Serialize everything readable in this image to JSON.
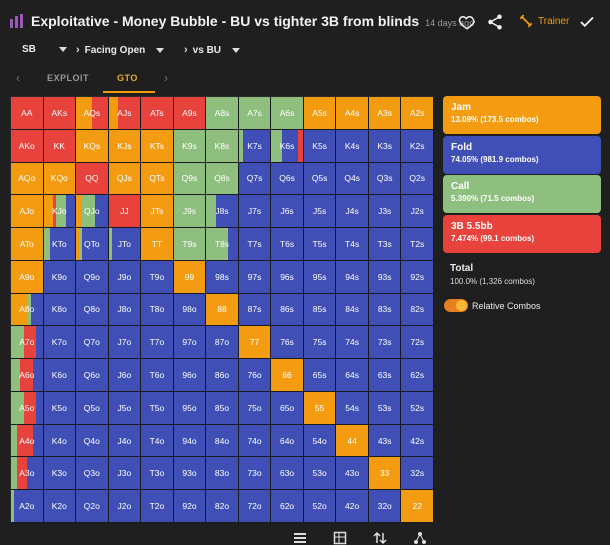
{
  "header": {
    "title": "Exploitative - Money Bubble - BU vs tighter 3B from blinds",
    "timestamp": "14 days ago",
    "trainer_label": "Trainer"
  },
  "filters": {
    "position": "SB",
    "action": "Facing Open",
    "opponent": "vs BU"
  },
  "tabs": {
    "exploit": "EXPLOIT",
    "gto": "GTO",
    "active": "GTO"
  },
  "colors": {
    "jam": "#f39c12",
    "fold": "#3f4fb5",
    "call": "#8fbf7f",
    "threebet": "#e8423c"
  },
  "matrix": {
    "rows": [
      [
        "AA",
        "AKs",
        "AQs",
        "AJs",
        "ATs",
        "A9s",
        "A8s",
        "A7s",
        "A6s",
        "A5s",
        "A4s",
        "A3s",
        "A2s"
      ],
      [
        "AKo",
        "KK",
        "KQs",
        "KJs",
        "KTs",
        "K9s",
        "K8s",
        "K7s",
        "K6s",
        "K5s",
        "K4s",
        "K3s",
        "K2s"
      ],
      [
        "AQo",
        "KQo",
        "QQ",
        "QJs",
        "QTs",
        "Q9s",
        "Q8s",
        "Q7s",
        "Q6s",
        "Q5s",
        "Q4s",
        "Q3s",
        "Q2s"
      ],
      [
        "AJo",
        "KJo",
        "QJo",
        "JJ",
        "JTs",
        "J9s",
        "J8s",
        "J7s",
        "J6s",
        "J5s",
        "J4s",
        "J3s",
        "J2s"
      ],
      [
        "ATo",
        "KTo",
        "QTo",
        "JTo",
        "TT",
        "T9s",
        "T8s",
        "T7s",
        "T6s",
        "T5s",
        "T4s",
        "T3s",
        "T2s"
      ],
      [
        "A9o",
        "K9o",
        "Q9o",
        "J9o",
        "T9o",
        "99",
        "98s",
        "97s",
        "96s",
        "95s",
        "94s",
        "93s",
        "92s"
      ],
      [
        "A8o",
        "K8o",
        "Q8o",
        "J8o",
        "T8o",
        "98o",
        "88",
        "87s",
        "86s",
        "85s",
        "84s",
        "83s",
        "82s"
      ],
      [
        "A7o",
        "K7o",
        "Q7o",
        "J7o",
        "T7o",
        "97o",
        "87o",
        "77",
        "76s",
        "75s",
        "74s",
        "73s",
        "72s"
      ],
      [
        "A6o",
        "K6o",
        "Q6o",
        "J6o",
        "T6o",
        "96o",
        "86o",
        "76o",
        "66",
        "65s",
        "64s",
        "63s",
        "62s"
      ],
      [
        "A5o",
        "K5o",
        "Q5o",
        "J5o",
        "T5o",
        "95o",
        "85o",
        "75o",
        "65o",
        "55",
        "54s",
        "53s",
        "52s"
      ],
      [
        "A4o",
        "K4o",
        "Q4o",
        "J4o",
        "T4o",
        "94o",
        "84o",
        "74o",
        "64o",
        "54o",
        "44",
        "43s",
        "42s"
      ],
      [
        "A3o",
        "K3o",
        "Q3o",
        "J3o",
        "T3o",
        "93o",
        "83o",
        "73o",
        "63o",
        "53o",
        "43o",
        "33",
        "32s"
      ],
      [
        "A2o",
        "K2o",
        "Q2o",
        "J2o",
        "T2o",
        "92o",
        "82o",
        "72o",
        "62o",
        "52o",
        "42o",
        "32o",
        "22"
      ]
    ],
    "mix": {
      "AA": [
        [
          "t",
          1
        ]
      ],
      "AKs": [
        [
          "t",
          1
        ]
      ],
      "AQs": [
        [
          "j",
          0.5
        ],
        [
          "t",
          0.5
        ]
      ],
      "AJs": [
        [
          "j",
          0.3
        ],
        [
          "t",
          0.7
        ]
      ],
      "ATs": [
        [
          "t",
          1
        ]
      ],
      "A9s": [
        [
          "t",
          1
        ]
      ],
      "A8s": [
        [
          "c",
          1
        ]
      ],
      "A7s": [
        [
          "c",
          1
        ]
      ],
      "A6s": [
        [
          "c",
          1
        ]
      ],
      "A5s": [
        [
          "j",
          1
        ]
      ],
      "A4s": [
        [
          "j",
          1
        ]
      ],
      "A3s": [
        [
          "j",
          1
        ]
      ],
      "A2s": [
        [
          "j",
          1
        ]
      ],
      "AKo": [
        [
          "t",
          1
        ]
      ],
      "KK": [
        [
          "t",
          1
        ]
      ],
      "KQs": [
        [
          "j",
          1
        ]
      ],
      "KJs": [
        [
          "j",
          1
        ]
      ],
      "KTs": [
        [
          "j",
          1
        ]
      ],
      "K9s": [
        [
          "c",
          1
        ]
      ],
      "K8s": [
        [
          "c",
          1
        ]
      ],
      "K7s": [
        [
          "c",
          0.15
        ],
        [
          "f",
          0.85
        ]
      ],
      "K6s": [
        [
          "c",
          0.35
        ],
        [
          "f",
          0.5
        ],
        [
          "t",
          0.15
        ]
      ],
      "AQo": [
        [
          "j",
          1
        ]
      ],
      "KQo": [
        [
          "j",
          1
        ]
      ],
      "QQ": [
        [
          "t",
          1
        ]
      ],
      "QJs": [
        [
          "j",
          1
        ]
      ],
      "QTs": [
        [
          "j",
          1
        ]
      ],
      "Q9s": [
        [
          "c",
          1
        ]
      ],
      "Q8s": [
        [
          "c",
          1
        ]
      ],
      "AJo": [
        [
          "j",
          1
        ]
      ],
      "KJo": [
        [
          "j",
          0.3
        ],
        [
          "t",
          0.1
        ],
        [
          "c",
          0.3
        ],
        [
          "f",
          0.3
        ]
      ],
      "QJo": [
        [
          "j",
          0.2
        ],
        [
          "c",
          0.4
        ],
        [
          "f",
          0.4
        ]
      ],
      "JJ": [
        [
          "t",
          1
        ]
      ],
      "JTs": [
        [
          "j",
          1
        ]
      ],
      "J9s": [
        [
          "c",
          1
        ]
      ],
      "J8s": [
        [
          "c",
          0.3
        ],
        [
          "f",
          0.7
        ]
      ],
      "ATo": [
        [
          "j",
          1
        ]
      ],
      "KTo": [
        [
          "c",
          0.2
        ],
        [
          "f",
          0.8
        ]
      ],
      "QTo": [
        [
          "j",
          0.1
        ],
        [
          "c",
          0.1
        ],
        [
          "f",
          0.8
        ]
      ],
      "JTo": [
        [
          "c",
          0.1
        ],
        [
          "f",
          0.9
        ]
      ],
      "TT": [
        [
          "j",
          1
        ]
      ],
      "T9s": [
        [
          "c",
          1
        ]
      ],
      "T8s": [
        [
          "c",
          0.7
        ],
        [
          "f",
          0.3
        ]
      ],
      "A9o": [
        [
          "j",
          1
        ]
      ],
      "99": [
        [
          "j",
          1
        ]
      ],
      "88": [
        [
          "j",
          1
        ]
      ],
      "77": [
        [
          "j",
          1
        ]
      ],
      "66": [
        [
          "j",
          1
        ]
      ],
      "55": [
        [
          "j",
          1
        ]
      ],
      "44": [
        [
          "j",
          1
        ]
      ],
      "33": [
        [
          "j",
          1
        ]
      ],
      "22": [
        [
          "j",
          1
        ]
      ],
      "A8o": [
        [
          "j",
          0.55
        ],
        [
          "c",
          0.1
        ],
        [
          "f",
          0.35
        ]
      ],
      "A7o": [
        [
          "c",
          0.4
        ],
        [
          "t",
          0.4
        ],
        [
          "f",
          0.2
        ]
      ],
      "A6o": [
        [
          "c",
          0.3
        ],
        [
          "t",
          0.4
        ],
        [
          "f",
          0.3
        ]
      ],
      "A5o": [
        [
          "c",
          0.4
        ],
        [
          "t",
          0.4
        ],
        [
          "f",
          0.2
        ]
      ],
      "A4o": [
        [
          "c",
          0.2
        ],
        [
          "t",
          0.5
        ],
        [
          "f",
          0.3
        ]
      ],
      "A3o": [
        [
          "c",
          0.2
        ],
        [
          "t",
          0.3
        ],
        [
          "f",
          0.5
        ]
      ],
      "A2o": [
        [
          "c",
          0.1
        ],
        [
          "f",
          0.9
        ]
      ]
    }
  },
  "legend": [
    {
      "key": "j",
      "name": "Jam",
      "value": "13.09% (173.5 combos)"
    },
    {
      "key": "f",
      "name": "Fold",
      "value": "74.05% (981.9 combos)"
    },
    {
      "key": "c",
      "name": "Call",
      "value": "5.390% (71.5 combos)"
    },
    {
      "key": "t",
      "name": "3B 5.5bb",
      "value": "7.474% (99.1 combos)"
    }
  ],
  "summary": {
    "total_label": "Total",
    "total_value": "100.0% (1,326 combos)"
  },
  "toggle": {
    "label": "Relative Combos",
    "on": true
  }
}
